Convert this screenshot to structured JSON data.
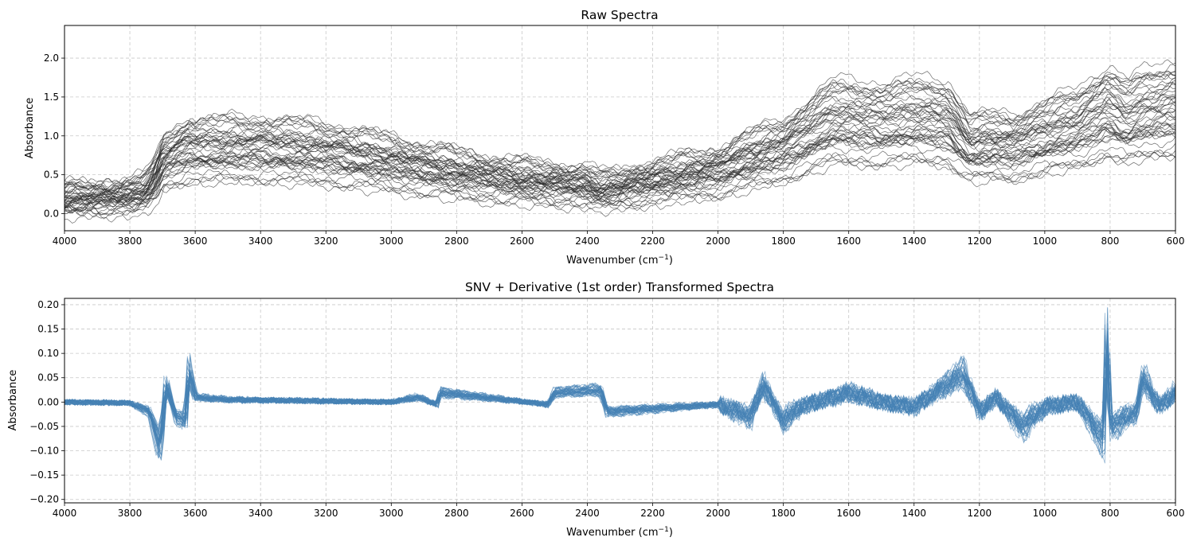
{
  "chart_data": [
    {
      "type": "line",
      "title": "Raw Spectra",
      "xlabel": "Wavenumber (cm",
      "xlabel_sup": "−1",
      "xlabel_close": ")",
      "ylabel": "Absorbance",
      "xlim": [
        4000,
        600
      ],
      "x_reversed": true,
      "ylim": [
        -0.22,
        2.42
      ],
      "xticks": [
        4000,
        3800,
        3600,
        3400,
        3200,
        3000,
        2800,
        2600,
        2400,
        2200,
        2000,
        1800,
        1600,
        1400,
        1200,
        1000,
        800,
        600
      ],
      "yticks": [
        0.0,
        0.5,
        1.0,
        1.5,
        2.0
      ],
      "ytick_labels": [
        "0.0",
        "0.5",
        "1.0",
        "1.5",
        "2.0"
      ],
      "grid": true,
      "line_color": "#2b2b2b",
      "n_series": 48,
      "representative_series": {
        "name": "",
        "x": [
          4000,
          3800,
          3750,
          3720,
          3700,
          3650,
          3620,
          3600,
          3400,
          3200,
          3000,
          2800,
          2600,
          2400,
          2360,
          2200,
          2000,
          1900,
          1800,
          1650,
          1500,
          1400,
          1300,
          1230,
          1160,
          1100,
          1000,
          900,
          810,
          750,
          700,
          600
        ],
        "y": [
          0.22,
          0.28,
          0.35,
          0.55,
          0.8,
          0.92,
          1.0,
          0.98,
          1.0,
          0.93,
          0.78,
          0.62,
          0.5,
          0.44,
          0.35,
          0.5,
          0.66,
          0.84,
          0.98,
          1.4,
          1.36,
          1.42,
          1.38,
          1.0,
          1.05,
          1.02,
          1.18,
          1.3,
          1.55,
          1.4,
          1.5,
          1.6
        ]
      }
    },
    {
      "type": "line",
      "title": "SNV + Derivative (1st order) Transformed Spectra",
      "xlabel": "Wavenumber (cm",
      "xlabel_sup": "−1",
      "xlabel_close": ")",
      "ylabel": "Absorbance",
      "xlim": [
        4000,
        600
      ],
      "x_reversed": true,
      "ylim": [
        -0.207,
        0.213
      ],
      "xticks": [
        4000,
        3800,
        3600,
        3400,
        3200,
        3000,
        2800,
        2600,
        2400,
        2200,
        2000,
        1800,
        1600,
        1400,
        1200,
        1000,
        800,
        600
      ],
      "yticks": [
        -0.2,
        -0.15,
        -0.1,
        -0.05,
        0.0,
        0.05,
        0.1,
        0.15,
        0.2
      ],
      "ytick_labels": [
        "−0.20",
        "−0.15",
        "−0.10",
        "−0.05",
        "0.00",
        "0.05",
        "0.10",
        "0.15",
        "0.20"
      ],
      "grid": true,
      "line_color": "#4682b4",
      "n_series": 48,
      "representative_series": {
        "name": "",
        "x": [
          4000,
          3800,
          3740,
          3710,
          3700,
          3690,
          3660,
          3630,
          3620,
          3600,
          3500,
          3000,
          2920,
          2860,
          2850,
          2520,
          2500,
          2360,
          2340,
          2000,
          1900,
          1860,
          1850,
          1800,
          1750,
          1600,
          1500,
          1400,
          1250,
          1200,
          1150,
          1070,
          1000,
          900,
          820,
          810,
          800,
          720,
          700,
          650,
          600
        ],
        "y": [
          0.0,
          -0.002,
          -0.02,
          -0.09,
          -0.05,
          0.04,
          -0.03,
          -0.04,
          0.07,
          0.01,
          0.005,
          0.0,
          0.01,
          -0.005,
          0.02,
          -0.005,
          0.02,
          0.025,
          -0.02,
          -0.005,
          -0.03,
          0.04,
          0.02,
          -0.04,
          -0.01,
          0.02,
          0.0,
          -0.01,
          0.06,
          -0.02,
          0.01,
          -0.05,
          -0.01,
          0.0,
          -0.08,
          0.15,
          -0.05,
          -0.02,
          0.05,
          -0.01,
          0.02
        ]
      }
    }
  ]
}
